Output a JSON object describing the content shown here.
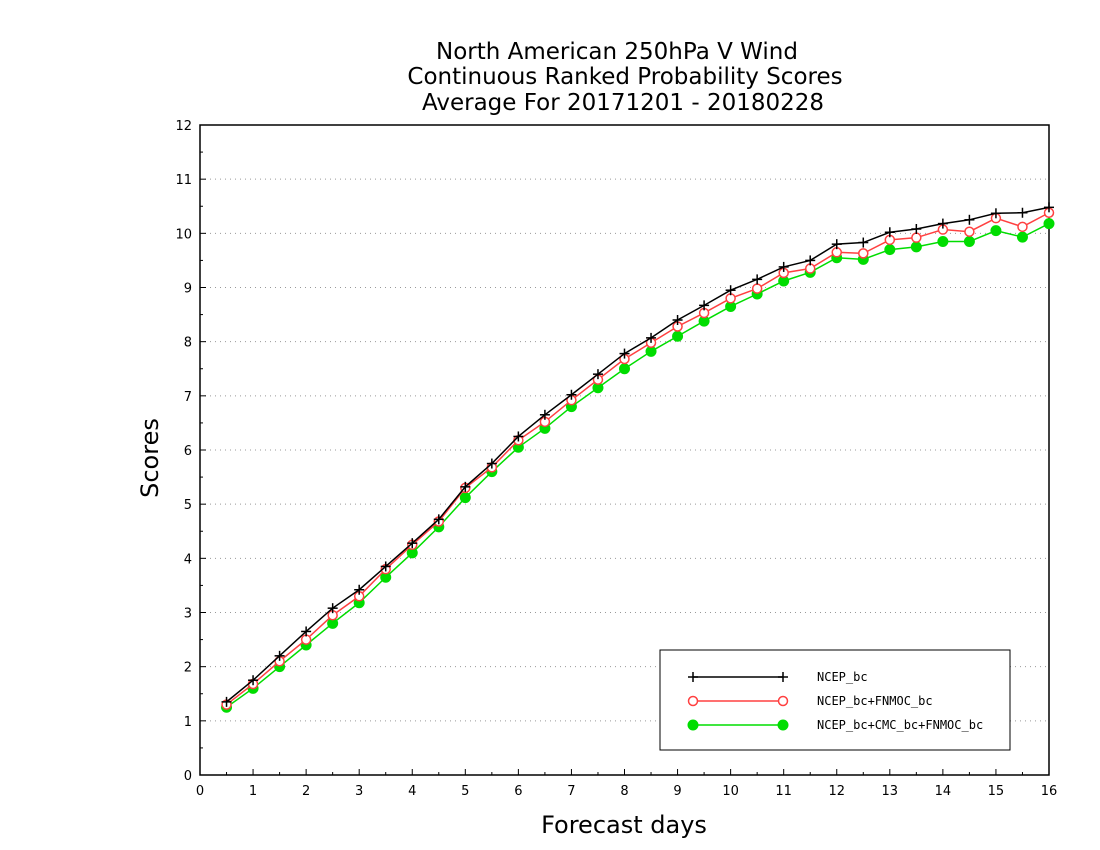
{
  "chart_data": {
    "type": "line",
    "title_lines": [
      "North American 250hPa V Wind",
      "Continuous Ranked Probability Scores",
      "Average For 20171201 - 20180228"
    ],
    "xlabel": "Forecast days",
    "ylabel": "Scores",
    "xlim": [
      0,
      16
    ],
    "ylim": [
      0,
      12
    ],
    "x_ticks": [
      "0",
      "1",
      "2",
      "3",
      "4",
      "5",
      "6",
      "7",
      "8",
      "9",
      "10",
      "11",
      "12",
      "13",
      "14",
      "15",
      "16"
    ],
    "y_ticks": [
      "0",
      "1",
      "2",
      "3",
      "4",
      "5",
      "6",
      "7",
      "8",
      "9",
      "10",
      "11",
      "12"
    ],
    "grid": "horizontal dotted",
    "legend_position": "bottom-right",
    "x": [
      0.5,
      1,
      1.5,
      2,
      2.5,
      3,
      3.5,
      4,
      4.5,
      5,
      5.5,
      6,
      6.5,
      7,
      7.5,
      8,
      8.5,
      9,
      9.5,
      10,
      10.5,
      11,
      11.5,
      12,
      12.5,
      13,
      13.5,
      14,
      14.5,
      15,
      15.5,
      16
    ],
    "series": [
      {
        "name": "NCEP_bc",
        "color": "#000000",
        "marker": "plus",
        "values": [
          1.35,
          1.75,
          2.2,
          2.65,
          3.08,
          3.42,
          3.85,
          4.28,
          4.72,
          5.32,
          5.75,
          6.25,
          6.65,
          7.02,
          7.4,
          7.78,
          8.07,
          8.4,
          8.67,
          8.95,
          9.15,
          9.38,
          9.5,
          9.8,
          9.83,
          10.02,
          10.08,
          10.18,
          10.25,
          10.37,
          10.38,
          10.48
        ]
      },
      {
        "name": "NCEP_bc+FNMOC_bc",
        "color": "#ff4040",
        "marker": "open-circle",
        "values": [
          1.3,
          1.68,
          2.1,
          2.5,
          2.95,
          3.3,
          3.8,
          4.25,
          4.68,
          5.3,
          5.68,
          6.18,
          6.52,
          6.92,
          7.3,
          7.68,
          7.98,
          8.28,
          8.53,
          8.8,
          8.98,
          9.27,
          9.35,
          9.65,
          9.63,
          9.88,
          9.92,
          10.07,
          10.03,
          10.28,
          10.12,
          10.38
        ]
      },
      {
        "name": "NCEP_bc+CMC_bc+FNMOC_bc",
        "color": "#00dd00",
        "marker": "filled-circle",
        "values": [
          1.25,
          1.6,
          2.0,
          2.4,
          2.8,
          3.18,
          3.65,
          4.1,
          4.58,
          5.12,
          5.6,
          6.05,
          6.4,
          6.8,
          7.15,
          7.5,
          7.82,
          8.1,
          8.38,
          8.65,
          8.88,
          9.12,
          9.28,
          9.55,
          9.52,
          9.7,
          9.75,
          9.85,
          9.85,
          10.05,
          9.93,
          10.18
        ]
      }
    ]
  }
}
